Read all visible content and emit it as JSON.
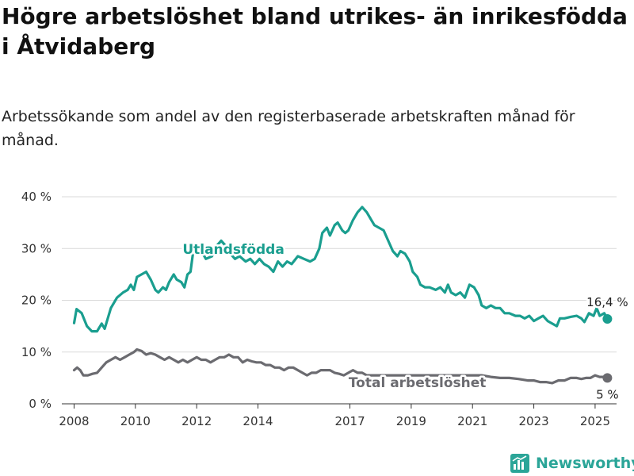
{
  "title": "Högre arbetslöshet bland utrikes- än inrikesfödda i Åtvidaberg",
  "subtitle": "Arbetssökande som andel av den registerbaserade arbetskraften månad för månad.",
  "brand": {
    "name": "Newsworthy",
    "icon": "newsworthy-logo-icon",
    "color": "#2ba598"
  },
  "chart_data": {
    "type": "line",
    "y_unit": "%",
    "ylim": [
      0,
      40
    ],
    "y_ticks": [
      {
        "value": 0,
        "label": "0 %"
      },
      {
        "value": 10,
        "label": "10 %"
      },
      {
        "value": 20,
        "label": "20 %"
      },
      {
        "value": 30,
        "label": "30 %"
      },
      {
        "value": 40,
        "label": "40 %"
      }
    ],
    "xlim": [
      2007.6,
      2025.7
    ],
    "x_ticks": [
      {
        "value": 2008,
        "label": "2008"
      },
      {
        "value": 2010,
        "label": "2010"
      },
      {
        "value": 2012,
        "label": "2012"
      },
      {
        "value": 2014,
        "label": "2014"
      },
      {
        "value": 2017,
        "label": "2017"
      },
      {
        "value": 2019,
        "label": "2019"
      },
      {
        "value": 2021,
        "label": "2021"
      },
      {
        "value": 2023,
        "label": "2023"
      },
      {
        "value": 2025,
        "label": "2025"
      }
    ],
    "grid": true,
    "series": [
      {
        "name": "Utlandsfödda",
        "color": "#1a9e8f",
        "end_label": "16,4 %",
        "points": [
          [
            2008.0,
            15.6
          ],
          [
            2008.08,
            18.3
          ],
          [
            2008.25,
            17.5
          ],
          [
            2008.42,
            15.0
          ],
          [
            2008.58,
            14.0
          ],
          [
            2008.75,
            14.0
          ],
          [
            2008.9,
            15.5
          ],
          [
            2009.0,
            14.5
          ],
          [
            2009.1,
            16.5
          ],
          [
            2009.2,
            18.5
          ],
          [
            2009.4,
            20.5
          ],
          [
            2009.6,
            21.5
          ],
          [
            2009.75,
            22.0
          ],
          [
            2009.85,
            23.0
          ],
          [
            2009.95,
            22.0
          ],
          [
            2010.05,
            24.5
          ],
          [
            2010.2,
            25.0
          ],
          [
            2010.35,
            25.5
          ],
          [
            2010.5,
            24.0
          ],
          [
            2010.65,
            22.0
          ],
          [
            2010.75,
            21.5
          ],
          [
            2010.9,
            22.5
          ],
          [
            2011.0,
            22.0
          ],
          [
            2011.1,
            23.5
          ],
          [
            2011.25,
            25.0
          ],
          [
            2011.35,
            24.0
          ],
          [
            2011.5,
            23.5
          ],
          [
            2011.6,
            22.5
          ],
          [
            2011.7,
            25.0
          ],
          [
            2011.8,
            25.5
          ],
          [
            2011.9,
            30.0
          ],
          [
            2012.0,
            30.5
          ],
          [
            2012.15,
            29.5
          ],
          [
            2012.3,
            28.0
          ],
          [
            2012.5,
            28.5
          ],
          [
            2012.65,
            30.5
          ],
          [
            2012.8,
            31.5
          ],
          [
            2012.95,
            30.5
          ],
          [
            2013.1,
            29.0
          ],
          [
            2013.25,
            28.0
          ],
          [
            2013.4,
            28.5
          ],
          [
            2013.6,
            27.5
          ],
          [
            2013.75,
            28.0
          ],
          [
            2013.9,
            27.0
          ],
          [
            2014.05,
            28.0
          ],
          [
            2014.2,
            27.0
          ],
          [
            2014.35,
            26.5
          ],
          [
            2014.5,
            25.5
          ],
          [
            2014.65,
            27.5
          ],
          [
            2014.8,
            26.5
          ],
          [
            2014.95,
            27.5
          ],
          [
            2015.1,
            27.0
          ],
          [
            2015.3,
            28.5
          ],
          [
            2015.5,
            28.0
          ],
          [
            2015.7,
            27.5
          ],
          [
            2015.85,
            28.0
          ],
          [
            2016.0,
            30.0
          ],
          [
            2016.1,
            33.0
          ],
          [
            2016.25,
            34.0
          ],
          [
            2016.35,
            32.5
          ],
          [
            2016.5,
            34.5
          ],
          [
            2016.6,
            35.0
          ],
          [
            2016.75,
            33.5
          ],
          [
            2016.85,
            33.0
          ],
          [
            2016.95,
            33.5
          ],
          [
            2017.1,
            35.5
          ],
          [
            2017.25,
            37.0
          ],
          [
            2017.4,
            38.0
          ],
          [
            2017.55,
            37.0
          ],
          [
            2017.7,
            35.5
          ],
          [
            2017.8,
            34.5
          ],
          [
            2017.95,
            34.0
          ],
          [
            2018.1,
            33.5
          ],
          [
            2018.25,
            31.5
          ],
          [
            2018.4,
            29.5
          ],
          [
            2018.55,
            28.5
          ],
          [
            2018.65,
            29.5
          ],
          [
            2018.8,
            29.0
          ],
          [
            2018.95,
            27.5
          ],
          [
            2019.05,
            25.5
          ],
          [
            2019.2,
            24.5
          ],
          [
            2019.3,
            23.0
          ],
          [
            2019.45,
            22.5
          ],
          [
            2019.6,
            22.5
          ],
          [
            2019.8,
            22.0
          ],
          [
            2019.95,
            22.5
          ],
          [
            2020.1,
            21.5
          ],
          [
            2020.2,
            23.0
          ],
          [
            2020.3,
            21.5
          ],
          [
            2020.45,
            21.0
          ],
          [
            2020.6,
            21.5
          ],
          [
            2020.75,
            20.5
          ],
          [
            2020.9,
            23.0
          ],
          [
            2021.05,
            22.5
          ],
          [
            2021.2,
            21.0
          ],
          [
            2021.3,
            19.0
          ],
          [
            2021.45,
            18.5
          ],
          [
            2021.6,
            19.0
          ],
          [
            2021.75,
            18.5
          ],
          [
            2021.9,
            18.5
          ],
          [
            2022.05,
            17.5
          ],
          [
            2022.2,
            17.5
          ],
          [
            2022.4,
            17.0
          ],
          [
            2022.55,
            17.0
          ],
          [
            2022.7,
            16.5
          ],
          [
            2022.85,
            17.0
          ],
          [
            2023.0,
            16.0
          ],
          [
            2023.15,
            16.5
          ],
          [
            2023.3,
            17.0
          ],
          [
            2023.45,
            16.0
          ],
          [
            2023.6,
            15.5
          ],
          [
            2023.75,
            15.0
          ],
          [
            2023.85,
            16.5
          ],
          [
            2024.0,
            16.5
          ],
          [
            2024.2,
            16.8
          ],
          [
            2024.4,
            17.0
          ],
          [
            2024.55,
            16.5
          ],
          [
            2024.65,
            15.8
          ],
          [
            2024.8,
            17.5
          ],
          [
            2024.95,
            17.0
          ],
          [
            2025.05,
            18.5
          ],
          [
            2025.15,
            17.0
          ],
          [
            2025.3,
            17.5
          ],
          [
            2025.4,
            16.4
          ]
        ]
      },
      {
        "name": "Total arbetslöshet",
        "color": "#6b6b70",
        "end_label": "5 %",
        "points": [
          [
            2008.0,
            6.5
          ],
          [
            2008.1,
            7.0
          ],
          [
            2008.2,
            6.5
          ],
          [
            2008.3,
            5.5
          ],
          [
            2008.45,
            5.5
          ],
          [
            2008.6,
            5.8
          ],
          [
            2008.75,
            6.0
          ],
          [
            2008.9,
            7.0
          ],
          [
            2009.05,
            8.0
          ],
          [
            2009.2,
            8.5
          ],
          [
            2009.35,
            9.0
          ],
          [
            2009.5,
            8.5
          ],
          [
            2009.65,
            9.0
          ],
          [
            2009.8,
            9.5
          ],
          [
            2009.95,
            10.0
          ],
          [
            2010.05,
            10.5
          ],
          [
            2010.2,
            10.2
          ],
          [
            2010.35,
            9.5
          ],
          [
            2010.5,
            9.8
          ],
          [
            2010.65,
            9.5
          ],
          [
            2010.8,
            9.0
          ],
          [
            2010.95,
            8.5
          ],
          [
            2011.1,
            9.0
          ],
          [
            2011.25,
            8.5
          ],
          [
            2011.4,
            8.0
          ],
          [
            2011.55,
            8.5
          ],
          [
            2011.7,
            8.0
          ],
          [
            2011.85,
            8.5
          ],
          [
            2012.0,
            9.0
          ],
          [
            2012.15,
            8.5
          ],
          [
            2012.3,
            8.5
          ],
          [
            2012.45,
            8.0
          ],
          [
            2012.6,
            8.5
          ],
          [
            2012.75,
            9.0
          ],
          [
            2012.9,
            9.0
          ],
          [
            2013.05,
            9.5
          ],
          [
            2013.2,
            9.0
          ],
          [
            2013.35,
            9.0
          ],
          [
            2013.5,
            8.0
          ],
          [
            2013.65,
            8.5
          ],
          [
            2013.8,
            8.2
          ],
          [
            2013.95,
            8.0
          ],
          [
            2014.1,
            8.0
          ],
          [
            2014.25,
            7.5
          ],
          [
            2014.4,
            7.5
          ],
          [
            2014.55,
            7.0
          ],
          [
            2014.7,
            7.0
          ],
          [
            2014.85,
            6.5
          ],
          [
            2015.0,
            7.0
          ],
          [
            2015.15,
            7.0
          ],
          [
            2015.3,
            6.5
          ],
          [
            2015.45,
            6.0
          ],
          [
            2015.6,
            5.5
          ],
          [
            2015.75,
            6.0
          ],
          [
            2015.9,
            6.0
          ],
          [
            2016.05,
            6.5
          ],
          [
            2016.2,
            6.5
          ],
          [
            2016.35,
            6.5
          ],
          [
            2016.5,
            6.0
          ],
          [
            2016.65,
            5.8
          ],
          [
            2016.8,
            5.5
          ],
          [
            2016.95,
            6.0
          ],
          [
            2017.1,
            6.5
          ],
          [
            2017.25,
            6.0
          ],
          [
            2017.4,
            6.0
          ],
          [
            2017.55,
            5.5
          ],
          [
            2017.7,
            5.5
          ],
          [
            2017.85,
            5.5
          ],
          [
            2018.0,
            5.5
          ],
          [
            2018.3,
            5.5
          ],
          [
            2018.6,
            5.5
          ],
          [
            2018.9,
            5.5
          ],
          [
            2019.2,
            5.5
          ],
          [
            2019.5,
            5.5
          ],
          [
            2019.8,
            5.5
          ],
          [
            2020.1,
            5.5
          ],
          [
            2020.4,
            5.5
          ],
          [
            2020.7,
            5.5
          ],
          [
            2021.0,
            5.5
          ],
          [
            2021.3,
            5.5
          ],
          [
            2021.6,
            5.2
          ],
          [
            2021.9,
            5.0
          ],
          [
            2022.2,
            5.0
          ],
          [
            2022.5,
            4.8
          ],
          [
            2022.8,
            4.5
          ],
          [
            2023.0,
            4.5
          ],
          [
            2023.2,
            4.2
          ],
          [
            2023.4,
            4.2
          ],
          [
            2023.6,
            4.0
          ],
          [
            2023.8,
            4.5
          ],
          [
            2024.0,
            4.5
          ],
          [
            2024.2,
            5.0
          ],
          [
            2024.4,
            5.0
          ],
          [
            2024.55,
            4.8
          ],
          [
            2024.7,
            5.0
          ],
          [
            2024.85,
            5.0
          ],
          [
            2025.0,
            5.5
          ],
          [
            2025.15,
            5.2
          ],
          [
            2025.3,
            5.2
          ],
          [
            2025.4,
            5.0
          ]
        ]
      }
    ]
  }
}
